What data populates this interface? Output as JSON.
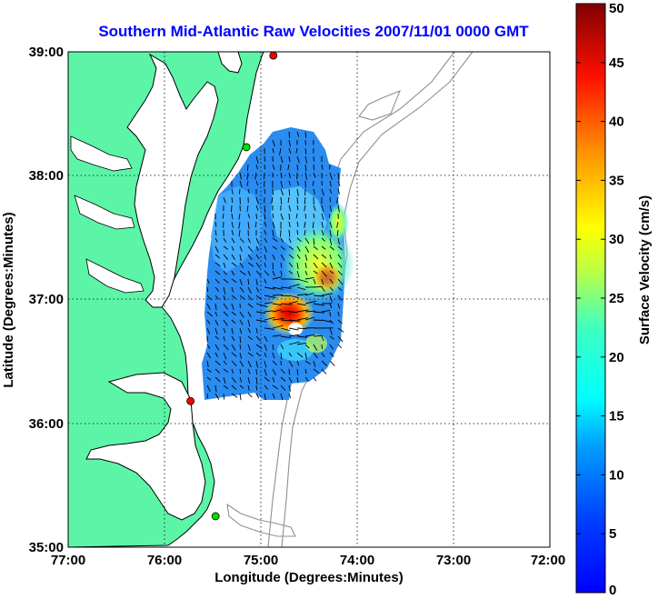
{
  "title": "Southern Mid-Atlantic Raw Velocities 2007/11/01 0000 GMT",
  "xlabel": "Longitude (Degrees:Minutes)",
  "ylabel": "Latitude (Degrees:Minutes)",
  "colorbar": {
    "label": "Surface Velocity (cm/s)",
    "min": 0,
    "max": 50,
    "ticks": [
      "0",
      "5",
      "10",
      "15",
      "20",
      "25",
      "30",
      "35",
      "40",
      "45",
      "50"
    ],
    "colormap": "jet"
  },
  "map": {
    "lon_range": [
      -77,
      -72
    ],
    "lat_range": [
      35,
      39
    ],
    "x_ticks": [
      "77:00",
      "76:00",
      "75:00",
      "74:00",
      "73:00",
      "72:00"
    ],
    "y_ticks": [
      "35:00",
      "36:00",
      "37:00",
      "38:00",
      "39:00"
    ],
    "grid": "dotted",
    "land_color": "#5cf5a8",
    "bathymetry_color": "#909090",
    "stations": [
      {
        "lon": -74.87,
        "lat": 38.97,
        "color": "#ff0000"
      },
      {
        "lon": -75.15,
        "lat": 38.23,
        "color": "#00dd00"
      },
      {
        "lon": -75.73,
        "lat": 36.18,
        "color": "#ff0000"
      },
      {
        "lon": -75.47,
        "lat": 35.25,
        "color": "#00dd00"
      }
    ]
  }
}
